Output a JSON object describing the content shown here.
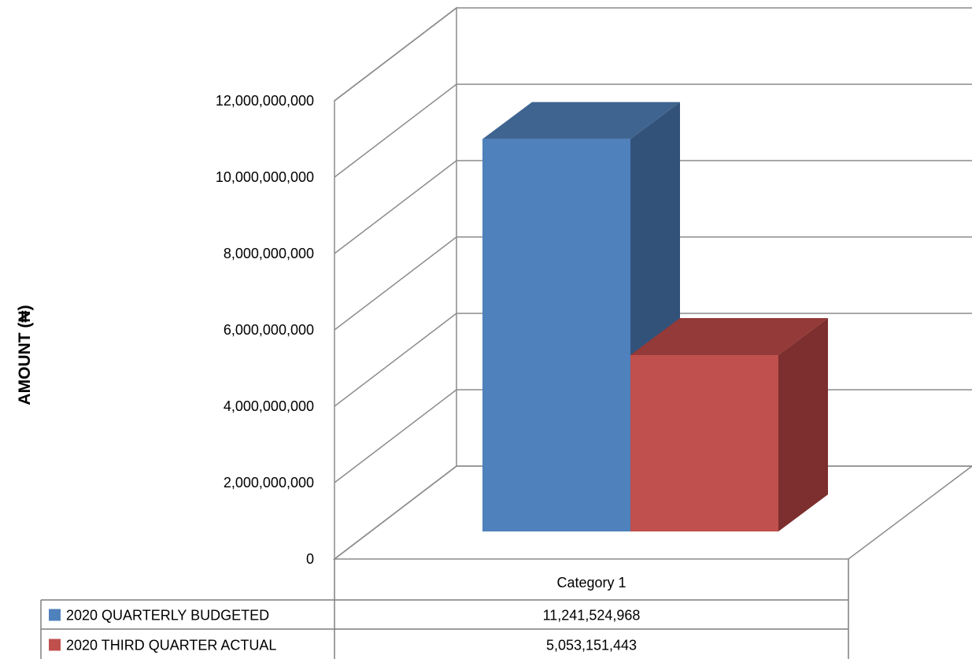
{
  "chart_data": {
    "type": "bar",
    "style": "3d-column-with-data-table",
    "categories": [
      "Category 1"
    ],
    "series": [
      {
        "name": "2020 QUARTERLY BUDGETED",
        "values": [
          11241524968
        ],
        "color": "#4F81BD",
        "top_color": "#3F6490",
        "side_color": "#33527A"
      },
      {
        "name": "2020 THIRD QUARTER ACTUAL",
        "values": [
          5053151443
        ],
        "color": "#C0504D",
        "top_color": "#943A38",
        "side_color": "#7C2F2E"
      }
    ],
    "title": "",
    "xlabel": "",
    "ylabel": "AMOUNT (₦)",
    "ylim": [
      0,
      12000000000
    ],
    "yticks": [
      0,
      2000000000,
      4000000000,
      6000000000,
      8000000000,
      10000000000,
      12000000000
    ],
    "ytick_labels": [
      "0",
      "2,000,000,000",
      "4,000,000,000",
      "6,000,000,000",
      "8,000,000,000",
      "10,000,000,000",
      "12,000,000,000"
    ],
    "grid": true,
    "legend": "data-table-below",
    "table_values": [
      "11,241,524,968",
      "5,053,151,443"
    ]
  }
}
